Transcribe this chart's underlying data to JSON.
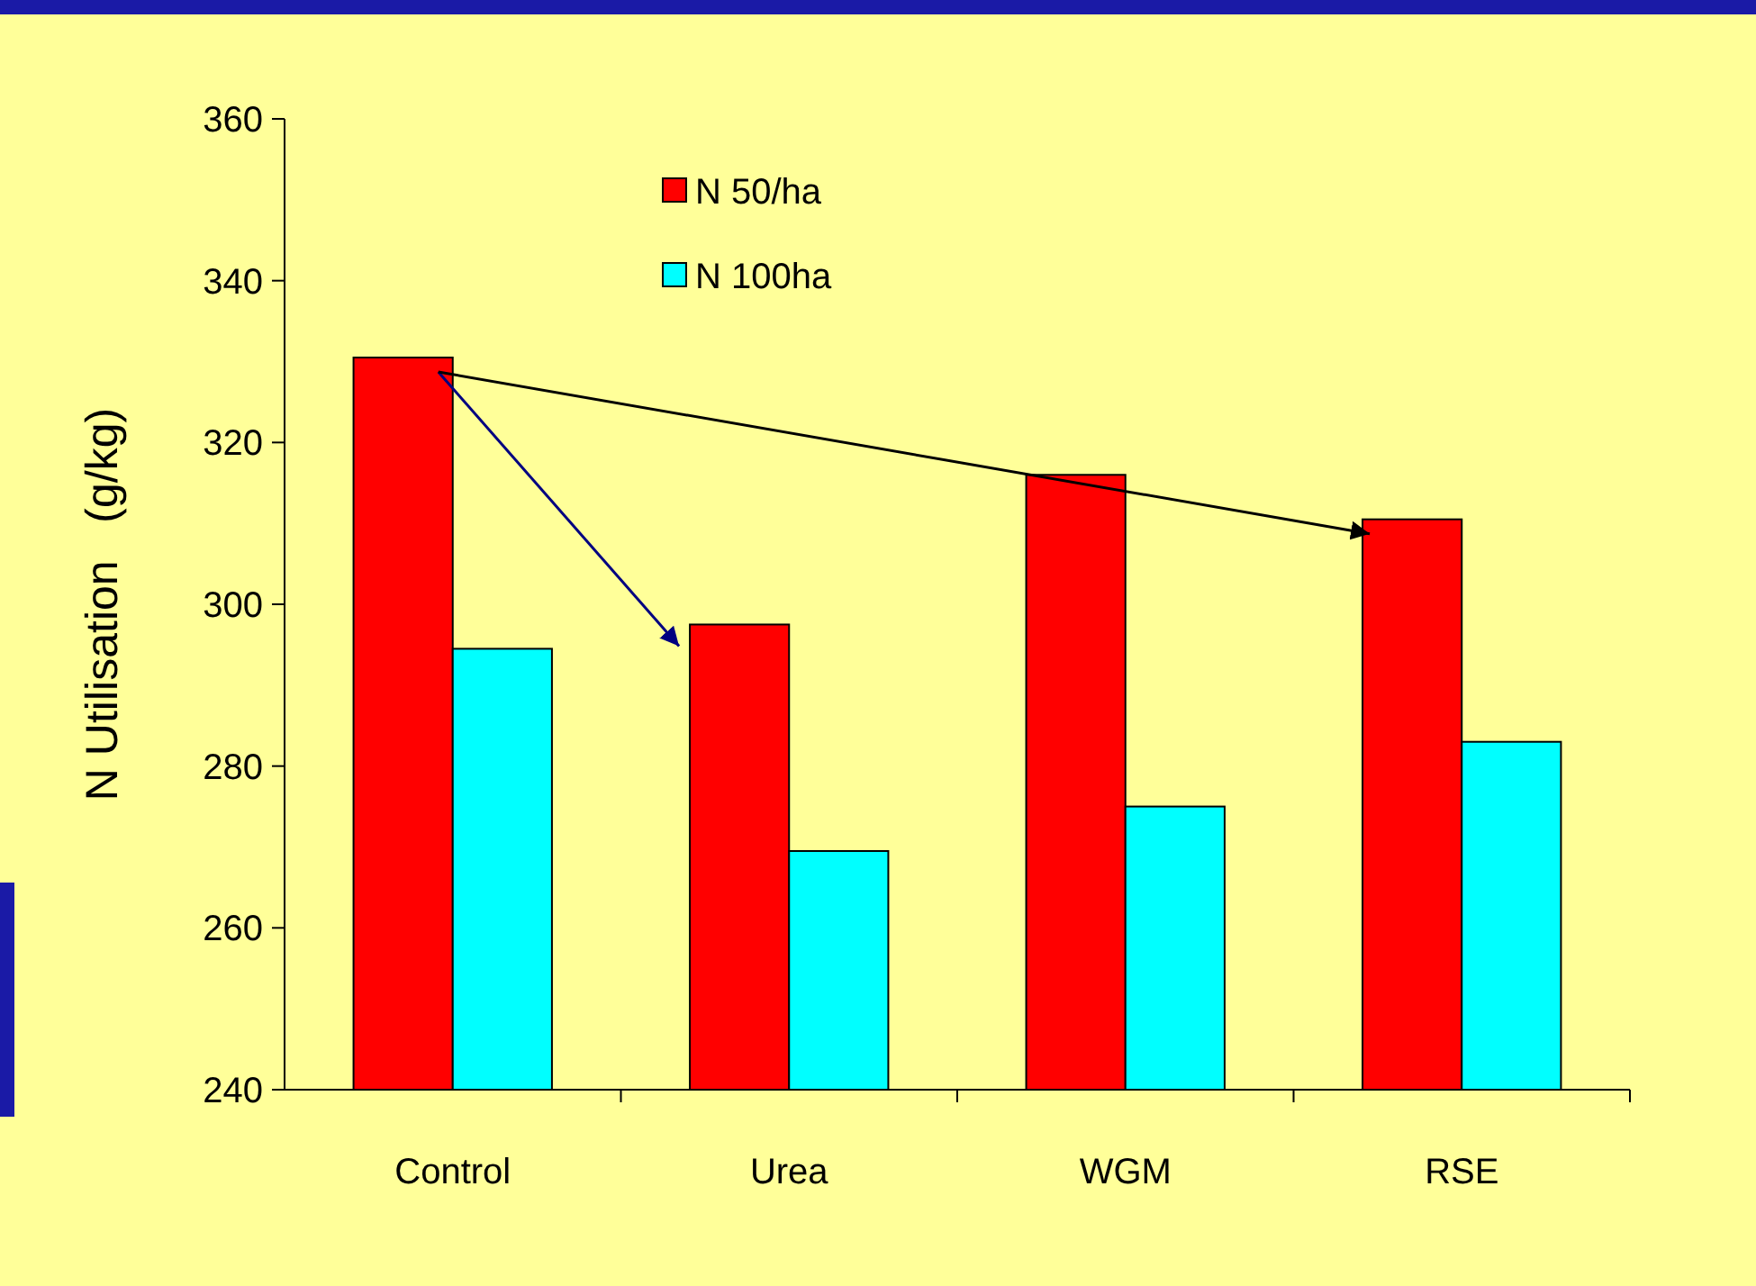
{
  "chart_data": {
    "type": "bar",
    "ylabel": "N Utilisation   (g/kg)",
    "categories": [
      "Control",
      "Urea",
      "WGM",
      "RSE"
    ],
    "series": [
      {
        "name": "N 50/ha",
        "color": "#ff0000",
        "values": [
          330.5,
          297.5,
          316,
          310.5
        ]
      },
      {
        "name": "N 100ha",
        "color": "#00ffff",
        "values": [
          294.5,
          269.5,
          275,
          283
        ]
      }
    ],
    "ylim": [
      240,
      360
    ],
    "yticks": [
      240,
      260,
      280,
      300,
      320,
      340,
      360
    ],
    "grid": false,
    "legend": "top left"
  }
}
